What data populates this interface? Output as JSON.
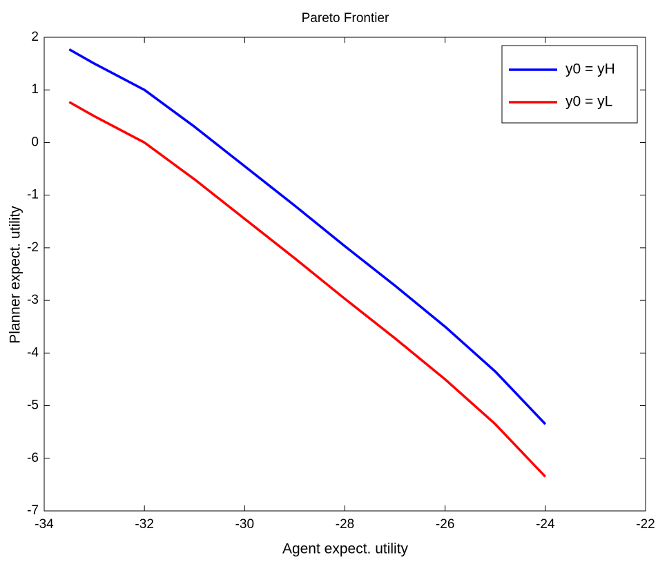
{
  "chart_data": {
    "type": "line",
    "title": "Pareto Frontier",
    "x_label": "Agent expect. utility",
    "y_label": "Planner expect. utility",
    "x": [
      -33.5,
      -33,
      -32,
      -31,
      -30,
      -29,
      -28,
      -27,
      -26,
      -25,
      -24
    ],
    "series": [
      {
        "name": "y0 = yH",
        "color": "#0000ff",
        "values": [
          1.77,
          1.5,
          1.0,
          0.3,
          -0.45,
          -1.2,
          -1.97,
          -2.72,
          -3.5,
          -4.35,
          -5.35
        ]
      },
      {
        "name": "y0 = yL",
        "color": "#ff0000",
        "values": [
          0.77,
          0.5,
          0.0,
          -0.7,
          -1.45,
          -2.2,
          -2.97,
          -3.72,
          -4.5,
          -5.35,
          -6.35
        ]
      }
    ],
    "xlim": [
      -34,
      -22
    ],
    "xticks": [
      -34,
      -32,
      -30,
      -28,
      -26,
      -24,
      -22
    ],
    "ylim": [
      -7,
      2
    ],
    "yticks": [
      -7,
      -6,
      -5,
      -4,
      -3,
      -2,
      -1,
      0,
      1,
      2
    ],
    "legend": "upper right"
  }
}
